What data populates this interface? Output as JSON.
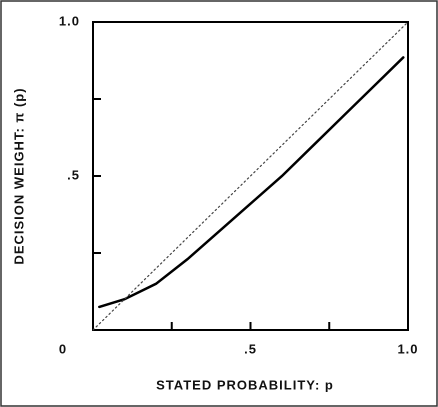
{
  "chart_data": {
    "type": "line",
    "xlabel": "STATED PROBABILITY: p",
    "ylabel": "DECISION WEIGHT: π (p)",
    "xlim": [
      0,
      1
    ],
    "ylim": [
      0,
      1
    ],
    "xticks": [
      0,
      {
        "value": 0.25
      },
      {
        "value": 0.5,
        "label": ".5"
      },
      {
        "value": 0.75
      },
      {
        "value": 1,
        "label": "1.0"
      }
    ],
    "yticks": [
      {
        "value": 0.25
      },
      {
        "value": 0.5,
        "label": ".5"
      },
      {
        "value": 0.75
      },
      {
        "value": 1,
        "label": "1.0"
      }
    ],
    "series": [
      {
        "color": "#000000",
        "style": "solid",
        "x": [
          0.02,
          0.1,
          0.2,
          0.3,
          0.4,
          0.5,
          0.6,
          0.7,
          0.8,
          0.9,
          0.985
        ],
        "values": [
          0.075,
          0.1,
          0.15,
          0.23,
          0.32,
          0.41,
          0.5,
          0.6,
          0.7,
          0.8,
          0.885
        ]
      },
      {
        "color": "#444444",
        "style": "dotted",
        "x": [
          0,
          1
        ],
        "values": [
          0,
          1
        ]
      }
    ]
  }
}
